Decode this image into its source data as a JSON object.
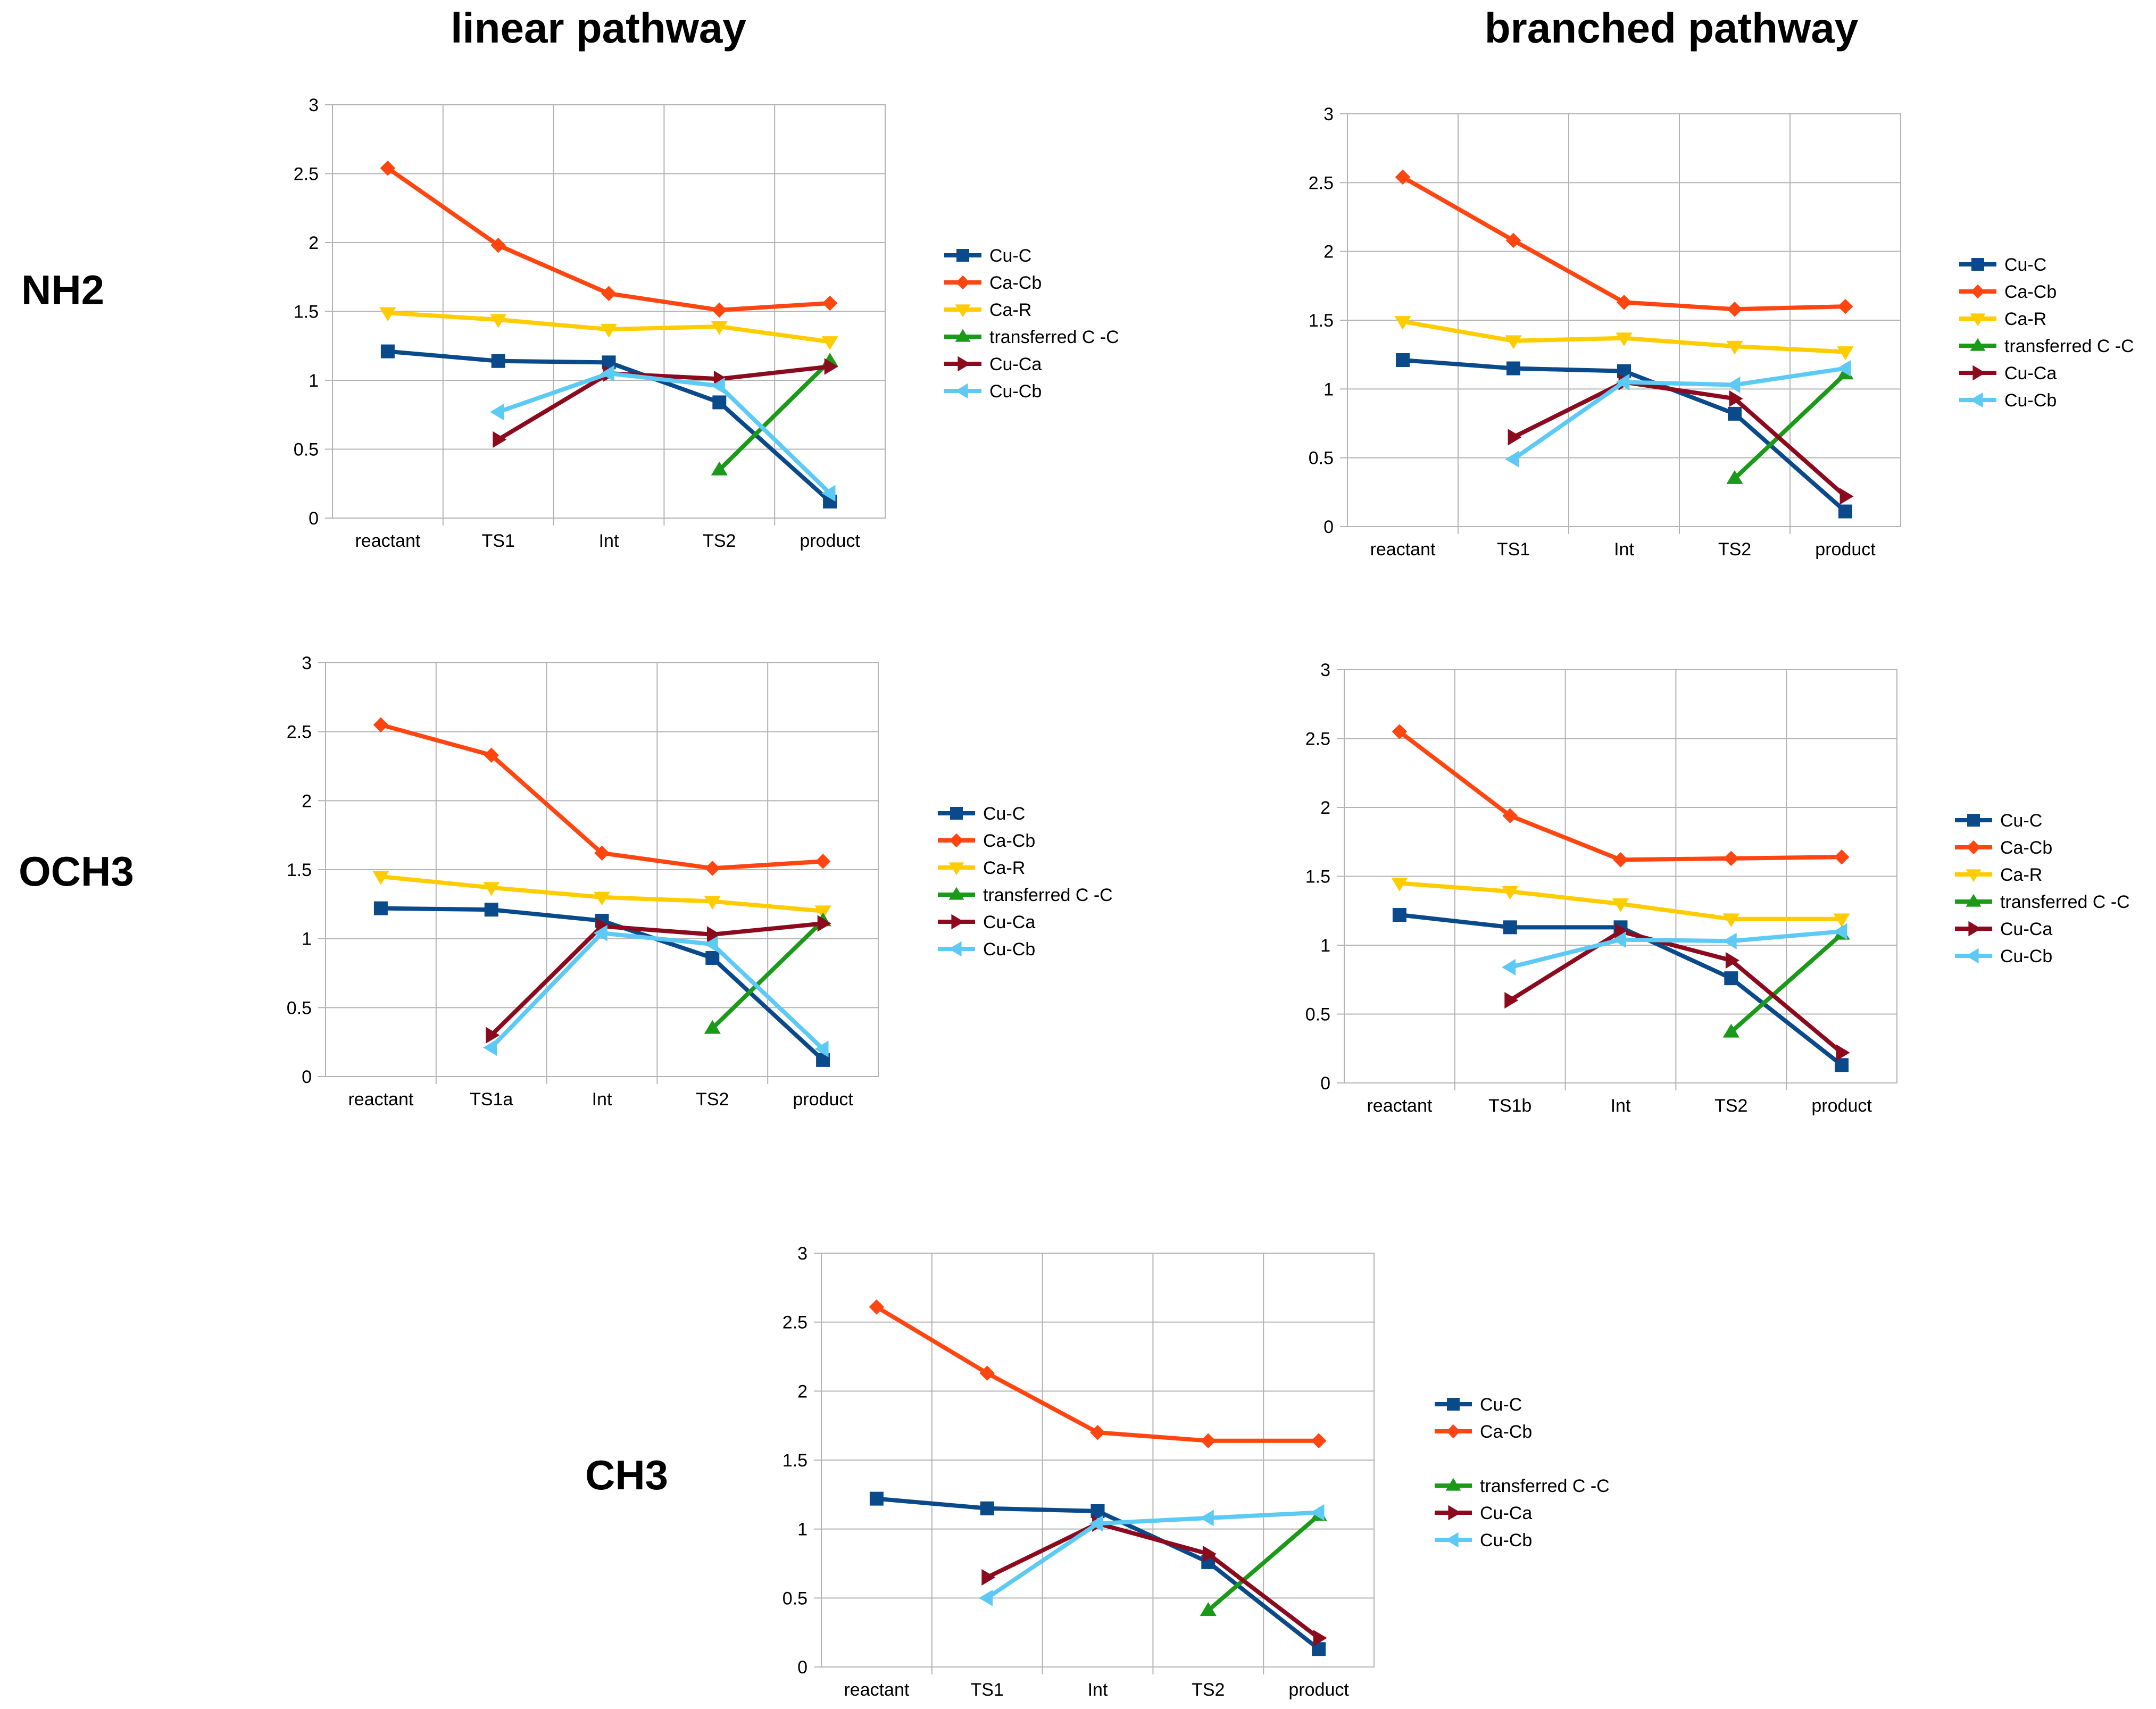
{
  "column_titles": [
    "linear pathway",
    "branched pathway"
  ],
  "row_labels": [
    "NH2",
    "OCH3",
    "CH3"
  ],
  "series_styles": {
    "Cu-C": {
      "color": "#0a4a8a",
      "marker": "square"
    },
    "Ca-Cb": {
      "color": "#ff4510",
      "marker": "diamond"
    },
    "Ca-R": {
      "color": "#ffcc00",
      "marker": "triangle-down"
    },
    "transferred C -C": {
      "color": "#1a9a18",
      "marker": "triangle-up"
    },
    "Cu-Ca": {
      "color": "#8b0a1e",
      "marker": "triangle-right"
    },
    "Cu-Cb": {
      "color": "#5ccaf5",
      "marker": "triangle-left"
    }
  },
  "chart_data": [
    {
      "type": "line",
      "id": "nh2-linear",
      "title": "",
      "xlabel": "",
      "ylabel": "",
      "categories": [
        "reactant",
        "TS1",
        "Int",
        "TS2",
        "product"
      ],
      "ylim": [
        0,
        3
      ],
      "yticks": [
        "0",
        "0.5",
        "1",
        "1.5",
        "2",
        "2.5",
        "3"
      ],
      "legend": [
        "Cu-C",
        "Ca-Cb",
        "Ca-R",
        "transferred C -C",
        "Cu-Ca",
        "Cu-Cb"
      ],
      "series": [
        {
          "name": "Cu-C",
          "values": [
            1.21,
            1.14,
            1.13,
            0.84,
            0.12
          ]
        },
        {
          "name": "Ca-Cb",
          "values": [
            2.54,
            1.98,
            1.63,
            1.51,
            1.56
          ]
        },
        {
          "name": "Ca-R",
          "values": [
            1.49,
            1.44,
            1.37,
            1.39,
            1.28
          ]
        },
        {
          "name": "transferred C -C",
          "values": [
            null,
            null,
            null,
            0.35,
            1.14
          ]
        },
        {
          "name": "Cu-Ca",
          "values": [
            null,
            0.57,
            1.05,
            1.01,
            1.1
          ]
        },
        {
          "name": "Cu-Cb",
          "values": [
            null,
            0.77,
            1.05,
            0.96,
            0.18
          ]
        }
      ]
    },
    {
      "type": "line",
      "id": "nh2-branched",
      "title": "",
      "xlabel": "",
      "ylabel": "",
      "categories": [
        "reactant",
        "TS1",
        "Int",
        "TS2",
        "product"
      ],
      "ylim": [
        0,
        3
      ],
      "yticks": [
        "0",
        "0.5",
        "1",
        "1.5",
        "2",
        "2.5",
        "3"
      ],
      "legend": [
        "Cu-C",
        "Ca-Cb",
        "Ca-R",
        "transferred C -C",
        "Cu-Ca",
        "Cu-Cb"
      ],
      "series": [
        {
          "name": "Cu-C",
          "values": [
            1.21,
            1.15,
            1.13,
            0.82,
            0.11
          ]
        },
        {
          "name": "Ca-Cb",
          "values": [
            2.54,
            2.08,
            1.63,
            1.58,
            1.6
          ]
        },
        {
          "name": "Ca-R",
          "values": [
            1.49,
            1.35,
            1.37,
            1.31,
            1.27
          ]
        },
        {
          "name": "transferred C -C",
          "values": [
            null,
            null,
            null,
            0.35,
            1.11
          ]
        },
        {
          "name": "Cu-Ca",
          "values": [
            null,
            0.65,
            1.05,
            0.93,
            0.22
          ]
        },
        {
          "name": "Cu-Cb",
          "values": [
            null,
            0.49,
            1.05,
            1.03,
            1.15
          ]
        }
      ]
    },
    {
      "type": "line",
      "id": "och3-linear",
      "title": "",
      "xlabel": "",
      "ylabel": "",
      "categories": [
        "reactant",
        "TS1a",
        "Int",
        "TS2",
        "product"
      ],
      "ylim": [
        0,
        3
      ],
      "yticks": [
        "0",
        "0.5",
        "1",
        "1.5",
        "2",
        "2.5",
        "3"
      ],
      "legend": [
        "Cu-C",
        "Ca-Cb",
        "Ca-R",
        "transferred C -C",
        "Cu-Ca",
        "Cu-Cb"
      ],
      "series": [
        {
          "name": "Cu-C",
          "values": [
            1.22,
            1.21,
            1.13,
            0.86,
            0.12
          ]
        },
        {
          "name": "Ca-Cb",
          "values": [
            2.55,
            2.33,
            1.62,
            1.51,
            1.56
          ]
        },
        {
          "name": "Ca-R",
          "values": [
            1.45,
            1.37,
            1.3,
            1.27,
            1.2
          ]
        },
        {
          "name": "transferred C -C",
          "values": [
            null,
            null,
            null,
            0.35,
            1.13
          ]
        },
        {
          "name": "Cu-Ca",
          "values": [
            null,
            0.3,
            1.09,
            1.03,
            1.11
          ]
        },
        {
          "name": "Cu-Cb",
          "values": [
            null,
            0.21,
            1.04,
            0.96,
            0.2
          ]
        }
      ]
    },
    {
      "type": "line",
      "id": "och3-branched",
      "title": "",
      "xlabel": "",
      "ylabel": "",
      "categories": [
        "reactant",
        "TS1b",
        "Int",
        "TS2",
        "product"
      ],
      "ylim": [
        0,
        3
      ],
      "yticks": [
        "0",
        "0.5",
        "1",
        "1.5",
        "2",
        "2.5",
        "3"
      ],
      "legend": [
        "Cu-C",
        "Ca-Cb",
        "Ca-R",
        "transferred C -C",
        "Cu-Ca",
        "Cu-Cb"
      ],
      "series": [
        {
          "name": "Cu-C",
          "values": [
            1.22,
            1.13,
            1.13,
            0.76,
            0.13
          ]
        },
        {
          "name": "Ca-Cb",
          "values": [
            2.55,
            1.94,
            1.62,
            1.63,
            1.64
          ]
        },
        {
          "name": "Ca-R",
          "values": [
            1.45,
            1.39,
            1.3,
            1.19,
            1.19
          ]
        },
        {
          "name": "transferred C -C",
          "values": [
            null,
            null,
            null,
            0.37,
            1.08
          ]
        },
        {
          "name": "Cu-Ca",
          "values": [
            null,
            0.6,
            1.1,
            0.89,
            0.22
          ]
        },
        {
          "name": "Cu-Cb",
          "values": [
            null,
            0.84,
            1.04,
            1.03,
            1.1
          ]
        }
      ]
    },
    {
      "type": "line",
      "id": "ch3-linear",
      "title": "",
      "xlabel": "",
      "ylabel": "",
      "categories": [
        "reactant",
        "TS1",
        "Int",
        "TS2",
        "product"
      ],
      "ylim": [
        0,
        3
      ],
      "yticks": [
        "0",
        "0.5",
        "1",
        "1.5",
        "2",
        "2.5",
        "3"
      ],
      "legend": [
        "Cu-C",
        "Ca-Cb",
        "",
        "transferred C -C",
        "Cu-Ca",
        "Cu-Cb"
      ],
      "series": [
        {
          "name": "Cu-C",
          "values": [
            1.22,
            1.15,
            1.13,
            0.76,
            0.13
          ]
        },
        {
          "name": "Ca-Cb",
          "values": [
            2.61,
            2.13,
            1.7,
            1.64,
            1.64
          ]
        },
        {
          "name": "transferred C -C",
          "values": [
            null,
            null,
            null,
            0.41,
            1.1
          ]
        },
        {
          "name": "Cu-Ca",
          "values": [
            null,
            0.65,
            1.04,
            0.82,
            0.21
          ]
        },
        {
          "name": "Cu-Cb",
          "values": [
            null,
            0.5,
            1.04,
            1.08,
            1.12
          ]
        }
      ]
    }
  ]
}
